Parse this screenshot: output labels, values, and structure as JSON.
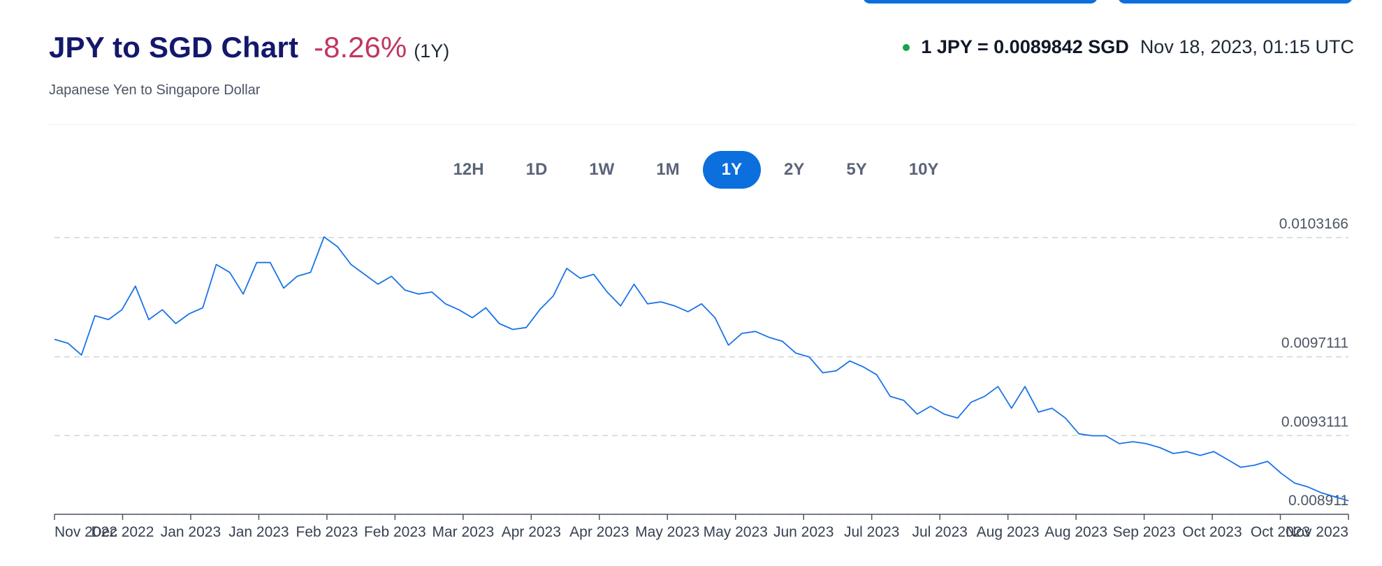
{
  "header": {
    "title": "JPY to SGD Chart",
    "change": "-8.26%",
    "period": "(1Y)",
    "subtitle": "Japanese Yen to Singapore Dollar"
  },
  "rate": {
    "text": "1 JPY = 0.0089842 SGD",
    "timestamp": "Nov 18, 2023, 01:15 UTC",
    "status_color": "#16a34a"
  },
  "ranges": [
    {
      "label": "12H",
      "active": false
    },
    {
      "label": "1D",
      "active": false
    },
    {
      "label": "1W",
      "active": false
    },
    {
      "label": "1M",
      "active": false
    },
    {
      "label": "1Y",
      "active": true
    },
    {
      "label": "2Y",
      "active": false
    },
    {
      "label": "5Y",
      "active": false
    },
    {
      "label": "10Y",
      "active": false
    }
  ],
  "colors": {
    "title": "#14186b",
    "change": "#c0375f",
    "accent": "#0b6fde",
    "line": "#1a73e8"
  },
  "chart_data": {
    "type": "line",
    "title": "",
    "xlabel": "",
    "ylabel": "",
    "grid": true,
    "y_gridlines": [
      0.0103166,
      0.0097111,
      0.0093111,
      0.0089112
    ],
    "y_labels": [
      "0.0103166",
      "0.0097111",
      "0.0093111",
      "0.008911"
    ],
    "ylim": [
      0.0089112,
      0.0103166
    ],
    "x_ticks": [
      "Nov 2022",
      "Dec 2022",
      "Jan 2023",
      "Jan 2023",
      "Feb 2023",
      "Feb 2023",
      "Mar 2023",
      "Apr 2023",
      "Apr 2023",
      "May 2023",
      "May 2023",
      "Jun 2023",
      "Jul 2023",
      "Jul 2023",
      "Aug 2023",
      "Aug 2023",
      "Sep 2023",
      "Oct 2023",
      "Oct 2023",
      "Nov 2023"
    ],
    "series": [
      {
        "values": [
          0.0098,
          0.00978,
          0.00972,
          0.00992,
          0.0099,
          0.00995,
          0.01007,
          0.0099,
          0.00995,
          0.00988,
          0.00993,
          0.00996,
          0.01018,
          0.01014,
          0.01003,
          0.01019,
          0.01019,
          0.01006,
          0.01012,
          0.01014,
          0.01032,
          0.01027,
          0.01018,
          0.01013,
          0.01008,
          0.01012,
          0.01005,
          0.01003,
          0.01004,
          0.00998,
          0.00995,
          0.00991,
          0.00996,
          0.00988,
          0.00985,
          0.00986,
          0.00995,
          0.01002,
          0.01016,
          0.01011,
          0.01013,
          0.01004,
          0.00997,
          0.01008,
          0.00998,
          0.00999,
          0.00997,
          0.00994,
          0.00998,
          0.00991,
          0.00977,
          0.00983,
          0.00984,
          0.00981,
          0.00979,
          0.00973,
          0.00971,
          0.00963,
          0.00964,
          0.00969,
          0.00966,
          0.00962,
          0.00951,
          0.00949,
          0.00942,
          0.00946,
          0.00942,
          0.0094,
          0.00948,
          0.00951,
          0.00956,
          0.00945,
          0.00956,
          0.00943,
          0.00945,
          0.0094,
          0.00932,
          0.00931,
          0.00931,
          0.00927,
          0.00928,
          0.00927,
          0.00925,
          0.00922,
          0.00923,
          0.00921,
          0.00923,
          0.00919,
          0.00915,
          0.00916,
          0.00918,
          0.00912,
          0.00907,
          0.00905,
          0.00902,
          0.009,
          0.00898
        ]
      }
    ]
  }
}
